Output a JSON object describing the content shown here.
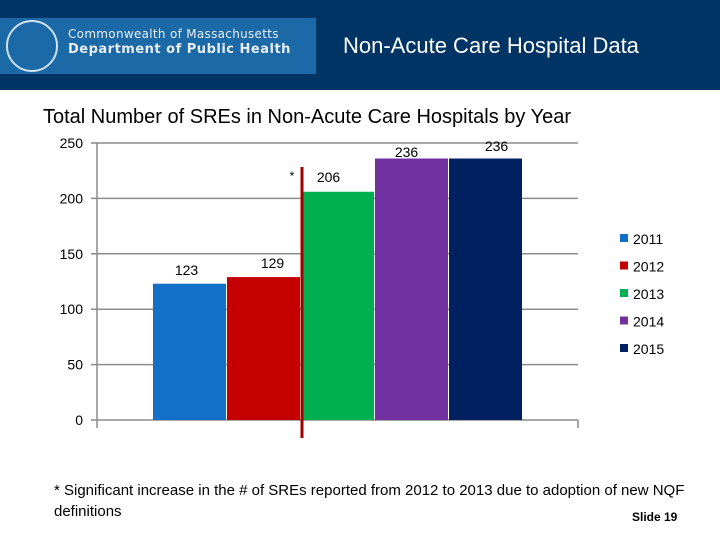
{
  "header": {
    "logo_line1": "Commonwealth of Massachusetts",
    "logo_line2": "Department of Public Health",
    "title": "Non-Acute Care Hospital Data",
    "colors": {
      "header": "#003465",
      "logo_bg": "#1b69a6"
    }
  },
  "chart_data": {
    "type": "bar",
    "title": "Total Number of SREs in Non-Acute Care Hospitals by Year",
    "xlabel": "",
    "ylabel": "",
    "ylim": [
      0,
      250
    ],
    "yticks": [
      0,
      50,
      100,
      150,
      200,
      250
    ],
    "grid": true,
    "legend": "right",
    "series": [
      {
        "name": "2011",
        "value": 123,
        "color": "#1270c8"
      },
      {
        "name": "2012",
        "value": 129,
        "color": "#c40000"
      },
      {
        "name": "2013",
        "value": 206,
        "color": "#00b050"
      },
      {
        "name": "2014",
        "value": 236,
        "color": "#7030a0"
      },
      {
        "name": "2015",
        "value": 236,
        "color": "#002060"
      }
    ],
    "annotation": {
      "text": "*",
      "between": [
        "2012",
        "2013"
      ],
      "line_color": "#a00000"
    }
  },
  "footnote": "* Significant increase in the # of SREs reported from 2012 to 2013 due to adoption of new NQF definitions",
  "slide_number": "Slide 19"
}
